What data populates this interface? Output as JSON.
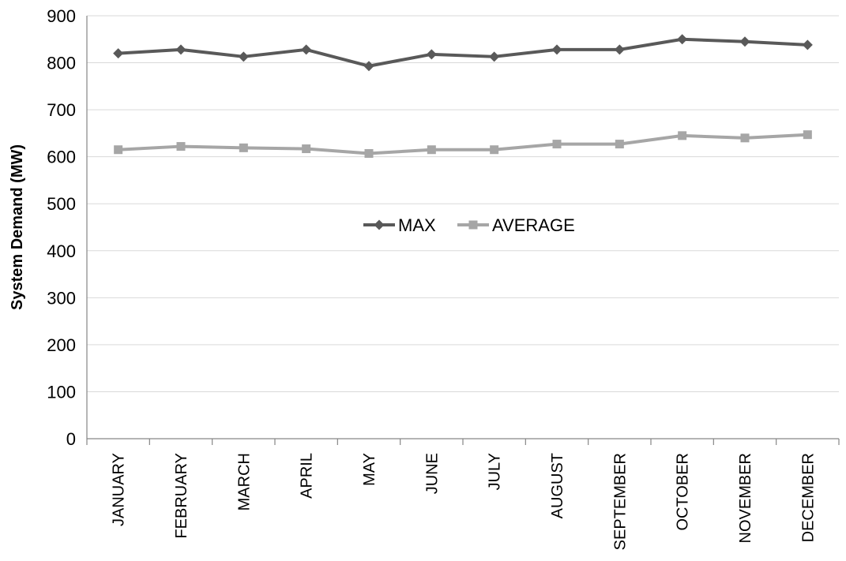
{
  "chart_data": {
    "type": "line",
    "title": "",
    "xlabel": "",
    "ylabel": "System Demand (MW)",
    "ylim": [
      0,
      900
    ],
    "yticks": [
      0,
      100,
      200,
      300,
      400,
      500,
      600,
      700,
      800,
      900
    ],
    "grid": true,
    "legend_position": "center",
    "categories": [
      "JANUARY",
      "FEBRUARY",
      "MARCH",
      "APRIL",
      "MAY",
      "JUNE",
      "JULY",
      "AUGUST",
      "SEPTEMBER",
      "OCTOBER",
      "NOVEMBER",
      "DECEMBER"
    ],
    "series": [
      {
        "name": "MAX",
        "color": "#595959",
        "marker": "diamond",
        "values": [
          820,
          828,
          813,
          828,
          793,
          818,
          813,
          828,
          828,
          850,
          845,
          838
        ]
      },
      {
        "name": "AVERAGE",
        "color": "#a6a6a6",
        "marker": "square",
        "values": [
          615,
          622,
          619,
          617,
          607,
          615,
          615,
          627,
          627,
          645,
          640,
          647
        ]
      }
    ]
  }
}
